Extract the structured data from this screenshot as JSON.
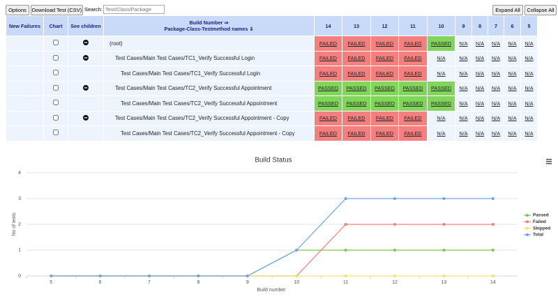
{
  "toolbar": {
    "options": "Options",
    "download": "Download Test (CSV)",
    "search_label": "Search:",
    "search_placeholder": "Test/Class/Package",
    "expand": "Expand All",
    "collapse": "Collapse All"
  },
  "table": {
    "headers": {
      "new_failures": "New Failures",
      "chart": "Chart",
      "see_children": "See children",
      "build_number": "Build Number ⇒",
      "names": "Package-Class-Testmethod names ⇓"
    },
    "builds": [
      14,
      13,
      12,
      11,
      10,
      9,
      8,
      7,
      6,
      5
    ],
    "status_colors": {
      "FAILED": "#f37f7f",
      "PASSED": "#80d55a"
    },
    "rows": [
      {
        "name": "(root)",
        "results": [
          "FAILED",
          "FAILED",
          "FAILED",
          "FAILED",
          "PASSED",
          "N/A",
          "N/A",
          "N/A",
          "N/A",
          "N/A"
        ]
      },
      {
        "name": "Test Cases/Main Test Cases/TC1_Verify Successful Login",
        "results": [
          "FAILED",
          "FAILED",
          "FAILED",
          "FAILED",
          "N/A",
          "N/A",
          "N/A",
          "N/A",
          "N/A",
          "N/A"
        ]
      },
      {
        "name": "Test Cases/Main Test Cases/TC1_Verify Successful Login",
        "results": [
          "FAILED",
          "FAILED",
          "FAILED",
          "FAILED",
          "N/A",
          "N/A",
          "N/A",
          "N/A",
          "N/A",
          "N/A"
        ]
      },
      {
        "name": "Test Cases/Main Test Cases/TC2_Verify Successful Appointment",
        "results": [
          "PASSED",
          "PASSED",
          "PASSED",
          "PASSED",
          "PASSED",
          "N/A",
          "N/A",
          "N/A",
          "N/A",
          "N/A"
        ]
      },
      {
        "name": "Test Cases/Main Test Cases/TC2_Verify Successful Appointment",
        "results": [
          "PASSED",
          "PASSED",
          "PASSED",
          "PASSED",
          "PASSED",
          "N/A",
          "N/A",
          "N/A",
          "N/A",
          "N/A"
        ]
      },
      {
        "name": "Test Cases/Main Test Cases/TC2_Verify Successful Appointment - Copy",
        "results": [
          "FAILED",
          "FAILED",
          "FAILED",
          "FAILED",
          "N/A",
          "N/A",
          "N/A",
          "N/A",
          "N/A",
          "N/A"
        ]
      },
      {
        "name": "Test Cases/Main Test Cases/TC2_Verify Successful Appointment - Copy",
        "results": [
          "FAILED",
          "FAILED",
          "FAILED",
          "FAILED",
          "N/A",
          "N/A",
          "N/A",
          "N/A",
          "N/A",
          "N/A"
        ]
      }
    ]
  },
  "chart_data": {
    "type": "line",
    "title": "Build Status",
    "x_label": "Build number",
    "y_label": "No of tests",
    "categories": [
      5,
      6,
      7,
      8,
      9,
      10,
      11,
      12,
      13,
      14
    ],
    "series": [
      {
        "name": "Passed",
        "color": "#7cc44a",
        "values": [
          0,
          0,
          0,
          0,
          0,
          1,
          1,
          1,
          1,
          1
        ]
      },
      {
        "name": "Failed",
        "color": "#f27f74",
        "values": [
          0,
          0,
          0,
          0,
          0,
          0,
          2,
          2,
          2,
          2
        ]
      },
      {
        "name": "Skipped",
        "color": "#f3e36a",
        "values": [
          0,
          0,
          0,
          0,
          0,
          0,
          0,
          0,
          0,
          0
        ]
      },
      {
        "name": "Total",
        "color": "#6ba4e8",
        "values": [
          0,
          0,
          0,
          0,
          0,
          1,
          3,
          3,
          3,
          3
        ]
      }
    ],
    "ylim": [
      0,
      4
    ],
    "yticks": [
      0,
      1,
      2,
      3,
      4
    ],
    "grid": true,
    "legend": "right"
  }
}
